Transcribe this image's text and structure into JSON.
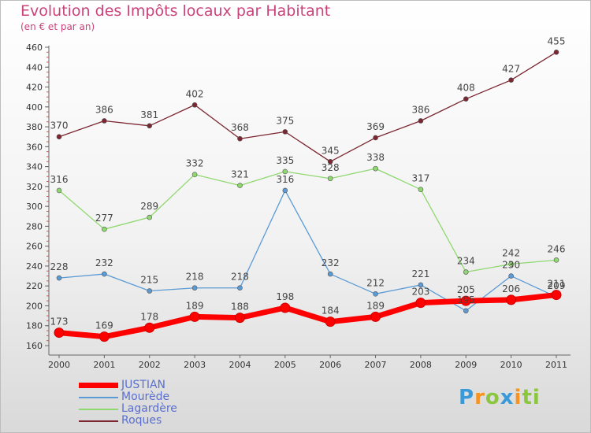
{
  "header": {
    "title": "Evolution des Impôts locaux par Habitant",
    "subtitle": "(en € et par an)"
  },
  "chart_data": {
    "type": "line",
    "title": "Evolution des Impôts locaux par Habitant",
    "subtitle": "(en € et par an)",
    "xlabel": "",
    "ylabel": "",
    "x": [
      "2000",
      "2001",
      "2002",
      "2003",
      "2004",
      "2005",
      "2006",
      "2007",
      "2008",
      "2009",
      "2010",
      "2011"
    ],
    "ylim": [
      160,
      460
    ],
    "yticks": [
      160,
      180,
      200,
      220,
      240,
      260,
      280,
      300,
      320,
      340,
      360,
      380,
      400,
      420,
      440,
      460
    ],
    "grid": false,
    "legend_position": "bottom-left",
    "series": [
      {
        "name": "JUSTIAN",
        "color": "#ff0000",
        "values": [
          173,
          169,
          178,
          189,
          188,
          198,
          184,
          189,
          203,
          205,
          206,
          211
        ]
      },
      {
        "name": "Mourède",
        "color": "#5b9bd5",
        "values": [
          228,
          232,
          215,
          218,
          218,
          316,
          232,
          212,
          221,
          195,
          230,
          209
        ]
      },
      {
        "name": "Lagardère",
        "color": "#8fd86f",
        "values": [
          316,
          277,
          289,
          332,
          321,
          335,
          328,
          338,
          317,
          234,
          242,
          246
        ]
      },
      {
        "name": "Roques",
        "color": "#7b2630",
        "values": [
          370,
          386,
          381,
          402,
          368,
          375,
          345,
          369,
          386,
          408,
          427,
          455
        ]
      }
    ],
    "labels_shown": [
      {
        "series": "JUSTIAN",
        "values": [
          "173",
          "169",
          "178",
          "189",
          "188",
          "198",
          "184",
          "189",
          "203",
          "205",
          "206",
          "211"
        ]
      },
      {
        "series": "Mourède",
        "values": [
          "228",
          "232",
          "215",
          "218",
          "218",
          "316",
          "232",
          "212",
          "221",
          "195",
          "230",
          "209"
        ]
      },
      {
        "series": "Lagardère",
        "values": [
          "316",
          "277",
          "289",
          "332",
          "321",
          "335",
          "328",
          "338",
          "317",
          "234",
          "242",
          "246"
        ]
      },
      {
        "series": "Roques",
        "values": [
          "370",
          "386",
          "381",
          "402",
          "368",
          "375",
          "345",
          "369",
          "386",
          "408",
          "427",
          "455"
        ]
      }
    ]
  },
  "legend": {
    "items": [
      {
        "label": "JUSTIAN",
        "color": "#ff0000"
      },
      {
        "label": "Mourède",
        "color": "#5b9bd5"
      },
      {
        "label": "Lagardère",
        "color": "#8fd86f"
      },
      {
        "label": "Roques",
        "color": "#7b2630"
      }
    ]
  },
  "logo": {
    "letters": [
      "P",
      "r",
      "o",
      "x",
      "i",
      "t",
      "i"
    ],
    "colors": [
      "#3a9ad9",
      "#f7931e",
      "#8cc63f",
      "#3a9ad9",
      "#f7931e",
      "#8cc63f",
      "#8cc63f"
    ]
  }
}
